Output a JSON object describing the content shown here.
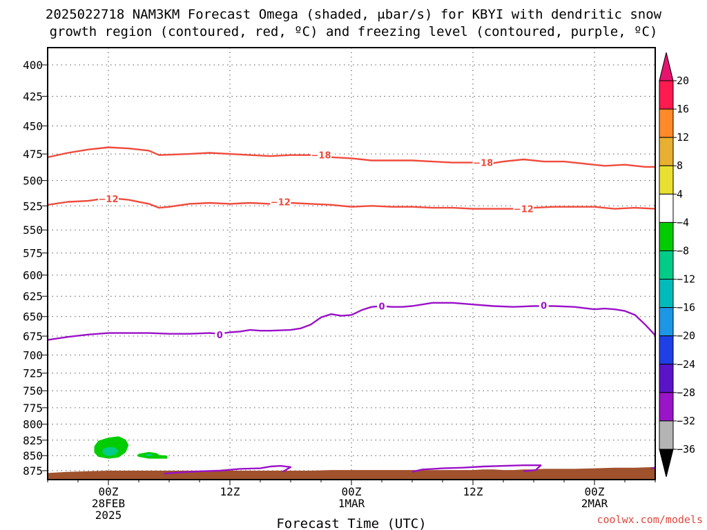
{
  "chart_data": {
    "type": "contour",
    "title_line1": "2025022718 NAM3KM Forecast Omega (shaded, μbar/s) for KBYI with dendritic snow",
    "title_line2": "growth region (contoured, red, ºC) and freezing level (contoured, purple, ºC)",
    "xlabel": "Forecast Time (UTC)",
    "credit": "coolwx.com/models",
    "y_ticks": [
      400,
      425,
      450,
      475,
      500,
      525,
      550,
      575,
      600,
      625,
      650,
      675,
      700,
      725,
      750,
      775,
      800,
      825,
      850,
      875
    ],
    "ylim": [
      880,
      385
    ],
    "x_range_hours": [
      0,
      60
    ],
    "x_ticks": [
      {
        "hour": 6,
        "line1": "00Z",
        "line2": "28FEB",
        "line3": "2025"
      },
      {
        "hour": 18,
        "line1": "12Z",
        "line2": "",
        "line3": ""
      },
      {
        "hour": 30,
        "line1": "00Z",
        "line2": "1MAR",
        "line3": ""
      },
      {
        "hour": 42,
        "line1": "12Z",
        "line2": "",
        "line3": ""
      },
      {
        "hour": 54,
        "line1": "00Z",
        "line2": "2MAR",
        "line3": ""
      }
    ],
    "grid": "dotted",
    "colorbar": {
      "labels": [
        "20",
        "16",
        "12",
        "8",
        "4",
        "−4",
        "−8",
        "−12",
        "−16",
        "−20",
        "−24",
        "−28",
        "−32",
        "−36"
      ],
      "colors": [
        "#ff1a50",
        "#ff8a2a",
        "#e8b030",
        "#e8e030",
        "#ffffff",
        "#00cc00",
        "#00cc88",
        "#00bbbb",
        "#1e96e6",
        "#1e40e6",
        "#5a14c8",
        "#9b14c8",
        "#b4b4b4"
      ],
      "top_arrow_color": "#e6146e",
      "bottom_arrow_color": "#000000"
    },
    "contours": [
      {
        "level": "-18",
        "color": "#f04a3c",
        "points": [
          [
            0,
            478
          ],
          [
            2,
            474
          ],
          [
            4,
            471
          ],
          [
            6,
            469
          ],
          [
            8,
            470
          ],
          [
            10,
            472
          ],
          [
            11,
            476
          ],
          [
            14,
            475
          ],
          [
            16,
            474
          ],
          [
            18,
            475
          ],
          [
            20,
            476
          ],
          [
            22,
            477
          ],
          [
            24,
            476
          ],
          [
            26,
            476
          ],
          [
            28,
            478
          ],
          [
            30,
            479
          ],
          [
            32,
            481
          ],
          [
            34,
            481
          ],
          [
            36,
            481
          ],
          [
            38,
            482
          ],
          [
            40,
            483
          ],
          [
            42,
            483
          ],
          [
            43,
            485
          ],
          [
            45,
            482
          ],
          [
            47,
            480
          ],
          [
            49,
            482
          ],
          [
            51,
            482
          ],
          [
            53,
            484
          ],
          [
            55,
            486
          ],
          [
            57,
            485
          ],
          [
            59,
            487
          ],
          [
            60,
            487
          ]
        ],
        "labels": [
          [
            27,
            476
          ],
          [
            43,
            483
          ]
        ]
      },
      {
        "level": "-12",
        "color": "#f04a3c",
        "points": [
          [
            0,
            524
          ],
          [
            2,
            521
          ],
          [
            4,
            520
          ],
          [
            6,
            517
          ],
          [
            8,
            519
          ],
          [
            10,
            523
          ],
          [
            11,
            527
          ],
          [
            12,
            526
          ],
          [
            14,
            523
          ],
          [
            16,
            522
          ],
          [
            18,
            523
          ],
          [
            20,
            522
          ],
          [
            22,
            523
          ],
          [
            24,
            522
          ],
          [
            26,
            523
          ],
          [
            28,
            524
          ],
          [
            30,
            526
          ],
          [
            32,
            525
          ],
          [
            34,
            526
          ],
          [
            36,
            526
          ],
          [
            38,
            527
          ],
          [
            40,
            527
          ],
          [
            42,
            528
          ],
          [
            44,
            528
          ],
          [
            46,
            528
          ],
          [
            48,
            527
          ],
          [
            50,
            526
          ],
          [
            52,
            526
          ],
          [
            54,
            526
          ],
          [
            56,
            528
          ],
          [
            58,
            527
          ],
          [
            60,
            528
          ]
        ],
        "labels": [
          [
            6,
            518
          ],
          [
            23,
            521
          ],
          [
            47,
            528
          ]
        ]
      },
      {
        "level": "0",
        "color": "#9a10c8",
        "points": [
          [
            0,
            680
          ],
          [
            2,
            676
          ],
          [
            4,
            673
          ],
          [
            6,
            671
          ],
          [
            8,
            671
          ],
          [
            10,
            671
          ],
          [
            12,
            672
          ],
          [
            14,
            672
          ],
          [
            16,
            671
          ],
          [
            17,
            672
          ],
          [
            18,
            670
          ],
          [
            19,
            669
          ],
          [
            20,
            667
          ],
          [
            21,
            668
          ],
          [
            22,
            668
          ],
          [
            24,
            667
          ],
          [
            25,
            665
          ],
          [
            26,
            660
          ],
          [
            27,
            651
          ],
          [
            28,
            647
          ],
          [
            29,
            649
          ],
          [
            30,
            648
          ],
          [
            31,
            642
          ],
          [
            32,
            638
          ],
          [
            33,
            637
          ],
          [
            34,
            638
          ],
          [
            35,
            638
          ],
          [
            36,
            637
          ],
          [
            37,
            635
          ],
          [
            38,
            633
          ],
          [
            40,
            633
          ],
          [
            42,
            635
          ],
          [
            44,
            637
          ],
          [
            46,
            638
          ],
          [
            48,
            637
          ],
          [
            50,
            637
          ],
          [
            52,
            638
          ],
          [
            54,
            641
          ],
          [
            55,
            640
          ],
          [
            56,
            641
          ],
          [
            57,
            643
          ],
          [
            58,
            648
          ],
          [
            59,
            660
          ],
          [
            60,
            674
          ]
        ],
        "labels": [
          [
            17,
            673
          ],
          [
            33,
            637
          ],
          [
            49,
            636
          ]
        ]
      },
      {
        "level": "0",
        "color": "#9a10c8",
        "points": [
          [
            11.5,
            880
          ],
          [
            13,
            878
          ],
          [
            15,
            876
          ],
          [
            17,
            875
          ],
          [
            19,
            872
          ],
          [
            21,
            871
          ],
          [
            22,
            868
          ],
          [
            23,
            867
          ],
          [
            24,
            869
          ],
          [
            23.2,
            877
          ]
        ],
        "labels": []
      },
      {
        "level": "0",
        "color": "#9a10c8",
        "points": [
          [
            36,
            877
          ],
          [
            37,
            873
          ],
          [
            39,
            871
          ],
          [
            41,
            870
          ],
          [
            43,
            868
          ],
          [
            45,
            867
          ],
          [
            47,
            866
          ],
          [
            48.7,
            866
          ],
          [
            48.2,
            874
          ],
          [
            47,
            876
          ]
        ],
        "labels": []
      },
      {
        "level": "0",
        "color": "#9a10c8",
        "points": [
          [
            59.6,
            871
          ],
          [
            60,
            870
          ]
        ],
        "labels": []
      }
    ],
    "shading": [
      {
        "value": -8,
        "color": "#00cc00",
        "points": [
          [
            5,
            826
          ],
          [
            6,
            821
          ],
          [
            7,
            819
          ],
          [
            7.7,
            824
          ],
          [
            8,
            833
          ],
          [
            7.7,
            845
          ],
          [
            7,
            853
          ],
          [
            6,
            855
          ],
          [
            5,
            852
          ],
          [
            4.6,
            845
          ],
          [
            4.6,
            835
          ]
        ]
      },
      {
        "value": -12,
        "color": "#00cc88",
        "points": [
          [
            5.5,
            839
          ],
          [
            6,
            836
          ],
          [
            6.7,
            837
          ],
          [
            7,
            843
          ],
          [
            6.6,
            849
          ],
          [
            6,
            851
          ],
          [
            5.5,
            848
          ],
          [
            5.4,
            843
          ]
        ]
      },
      {
        "value": -8,
        "color": "#00cc00",
        "points": [
          [
            9,
            847
          ],
          [
            10,
            844
          ],
          [
            10.8,
            846
          ],
          [
            11,
            849
          ],
          [
            11.8,
            850
          ],
          [
            11.8,
            855
          ],
          [
            10,
            855
          ],
          [
            9,
            852
          ],
          [
            8.8,
            850
          ]
        ]
      },
      {
        "value": -12,
        "color": "#00cc88",
        "points": [
          [
            9.6,
            848
          ],
          [
            10.2,
            847
          ],
          [
            10.4,
            850
          ],
          [
            9.8,
            851
          ]
        ]
      }
    ],
    "terrain": {
      "color": "#a0522d",
      "points": [
        [
          0,
          879
        ],
        [
          2,
          877
        ],
        [
          4,
          876
        ],
        [
          6,
          875
        ],
        [
          8,
          875
        ],
        [
          10,
          875
        ],
        [
          12,
          875
        ],
        [
          14,
          875
        ],
        [
          16,
          875
        ],
        [
          18,
          875
        ],
        [
          20,
          875
        ],
        [
          22,
          875
        ],
        [
          24,
          875
        ],
        [
          26,
          875
        ],
        [
          28,
          874
        ],
        [
          30,
          874
        ],
        [
          32,
          874
        ],
        [
          34,
          874
        ],
        [
          36,
          874
        ],
        [
          38,
          874
        ],
        [
          40,
          874
        ],
        [
          42,
          874
        ],
        [
          43,
          873
        ],
        [
          44,
          873
        ],
        [
          45,
          874
        ],
        [
          46,
          874
        ],
        [
          47,
          873
        ],
        [
          48,
          873
        ],
        [
          49,
          872
        ],
        [
          50,
          872
        ],
        [
          52,
          872
        ],
        [
          54,
          871
        ],
        [
          56,
          870
        ],
        [
          58,
          870
        ],
        [
          60,
          869
        ]
      ]
    }
  }
}
